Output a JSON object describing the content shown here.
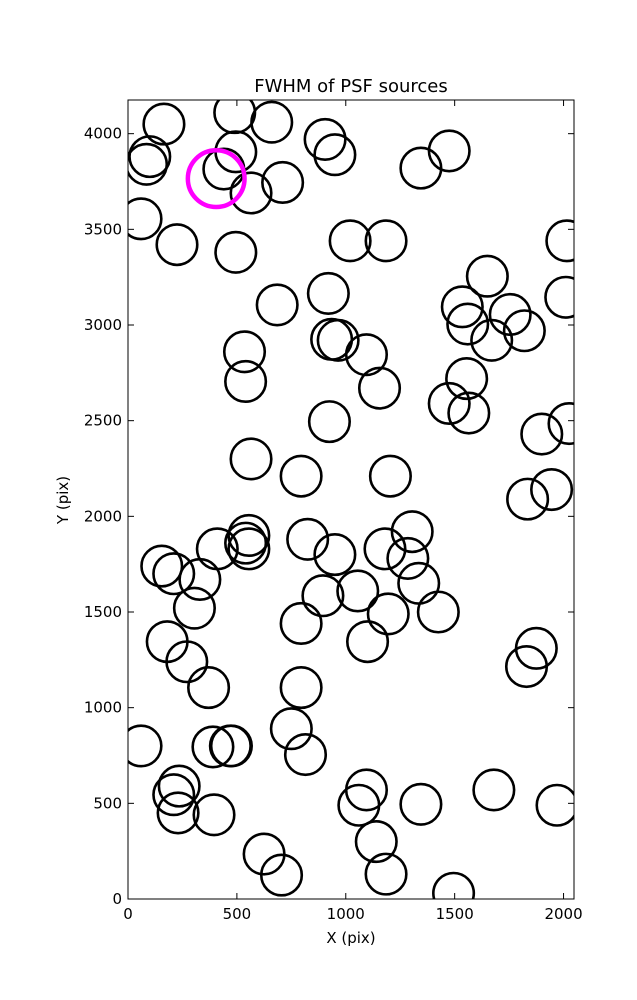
{
  "chart_data": {
    "type": "scatter",
    "title": "FWHM of PSF sources",
    "xlabel": "X (pix)",
    "ylabel": "Y (pix)",
    "xlim": [
      0,
      2048
    ],
    "ylim": [
      0,
      4176
    ],
    "xticks": [
      0,
      500,
      1000,
      1500,
      2000
    ],
    "yticks": [
      0,
      500,
      1000,
      1500,
      2000,
      2500,
      3000,
      3500,
      4000
    ],
    "grid": false,
    "marker": "circle",
    "marker_radius_data_x": 93,
    "colors": {
      "default": "#000000",
      "highlight": "#ff00ff"
    },
    "highlight_point": {
      "x": 405,
      "y": 3765
    },
    "points": [
      {
        "x": 165,
        "y": 4050
      },
      {
        "x": 490,
        "y": 4110
      },
      {
        "x": 660,
        "y": 4060
      },
      {
        "x": 100,
        "y": 3880
      },
      {
        "x": 85,
        "y": 3840
      },
      {
        "x": 495,
        "y": 3905
      },
      {
        "x": 440,
        "y": 3815
      },
      {
        "x": 565,
        "y": 3690
      },
      {
        "x": 710,
        "y": 3745
      },
      {
        "x": 905,
        "y": 3970
      },
      {
        "x": 950,
        "y": 3890
      },
      {
        "x": 1345,
        "y": 3820
      },
      {
        "x": 1475,
        "y": 3910
      },
      {
        "x": 60,
        "y": 3555
      },
      {
        "x": 225,
        "y": 3420
      },
      {
        "x": 495,
        "y": 3380
      },
      {
        "x": 1020,
        "y": 3440
      },
      {
        "x": 1185,
        "y": 3440
      },
      {
        "x": 2015,
        "y": 3440
      },
      {
        "x": 1650,
        "y": 3255
      },
      {
        "x": 685,
        "y": 3105
      },
      {
        "x": 920,
        "y": 3165
      },
      {
        "x": 1535,
        "y": 3095
      },
      {
        "x": 1560,
        "y": 3005
      },
      {
        "x": 1755,
        "y": 3055
      },
      {
        "x": 2010,
        "y": 3145
      },
      {
        "x": 1820,
        "y": 2970
      },
      {
        "x": 1670,
        "y": 2920
      },
      {
        "x": 965,
        "y": 2920
      },
      {
        "x": 935,
        "y": 2925
      },
      {
        "x": 1095,
        "y": 2845
      },
      {
        "x": 535,
        "y": 2860
      },
      {
        "x": 540,
        "y": 2705
      },
      {
        "x": 1155,
        "y": 2670
      },
      {
        "x": 1555,
        "y": 2720
      },
      {
        "x": 1475,
        "y": 2590
      },
      {
        "x": 1565,
        "y": 2540
      },
      {
        "x": 925,
        "y": 2495
      },
      {
        "x": 1900,
        "y": 2430
      },
      {
        "x": 2025,
        "y": 2485
      },
      {
        "x": 565,
        "y": 2300
      },
      {
        "x": 795,
        "y": 2210
      },
      {
        "x": 1205,
        "y": 2210
      },
      {
        "x": 1945,
        "y": 2140
      },
      {
        "x": 1835,
        "y": 2090
      },
      {
        "x": 555,
        "y": 1900
      },
      {
        "x": 540,
        "y": 1860
      },
      {
        "x": 555,
        "y": 1830
      },
      {
        "x": 410,
        "y": 1830
      },
      {
        "x": 825,
        "y": 1880
      },
      {
        "x": 950,
        "y": 1800
      },
      {
        "x": 1180,
        "y": 1830
      },
      {
        "x": 1305,
        "y": 1920
      },
      {
        "x": 1285,
        "y": 1780
      },
      {
        "x": 155,
        "y": 1740
      },
      {
        "x": 210,
        "y": 1700
      },
      {
        "x": 330,
        "y": 1670
      },
      {
        "x": 305,
        "y": 1520
      },
      {
        "x": 1335,
        "y": 1650
      },
      {
        "x": 1055,
        "y": 1610
      },
      {
        "x": 895,
        "y": 1585
      },
      {
        "x": 795,
        "y": 1440
      },
      {
        "x": 1195,
        "y": 1490
      },
      {
        "x": 1425,
        "y": 1500
      },
      {
        "x": 1100,
        "y": 1345
      },
      {
        "x": 180,
        "y": 1345
      },
      {
        "x": 270,
        "y": 1240
      },
      {
        "x": 370,
        "y": 1105
      },
      {
        "x": 795,
        "y": 1105
      },
      {
        "x": 1875,
        "y": 1310
      },
      {
        "x": 1830,
        "y": 1215
      },
      {
        "x": 750,
        "y": 890
      },
      {
        "x": 815,
        "y": 755
      },
      {
        "x": 60,
        "y": 800
      },
      {
        "x": 390,
        "y": 795
      },
      {
        "x": 470,
        "y": 800
      },
      {
        "x": 475,
        "y": 800
      },
      {
        "x": 235,
        "y": 590
      },
      {
        "x": 210,
        "y": 545
      },
      {
        "x": 230,
        "y": 450
      },
      {
        "x": 395,
        "y": 440
      },
      {
        "x": 1095,
        "y": 570
      },
      {
        "x": 1060,
        "y": 490
      },
      {
        "x": 1345,
        "y": 495
      },
      {
        "x": 1680,
        "y": 570
      },
      {
        "x": 1970,
        "y": 490
      },
      {
        "x": 1140,
        "y": 300
      },
      {
        "x": 625,
        "y": 235
      },
      {
        "x": 705,
        "y": 125
      },
      {
        "x": 1185,
        "y": 130
      },
      {
        "x": 1495,
        "y": 30
      }
    ]
  }
}
